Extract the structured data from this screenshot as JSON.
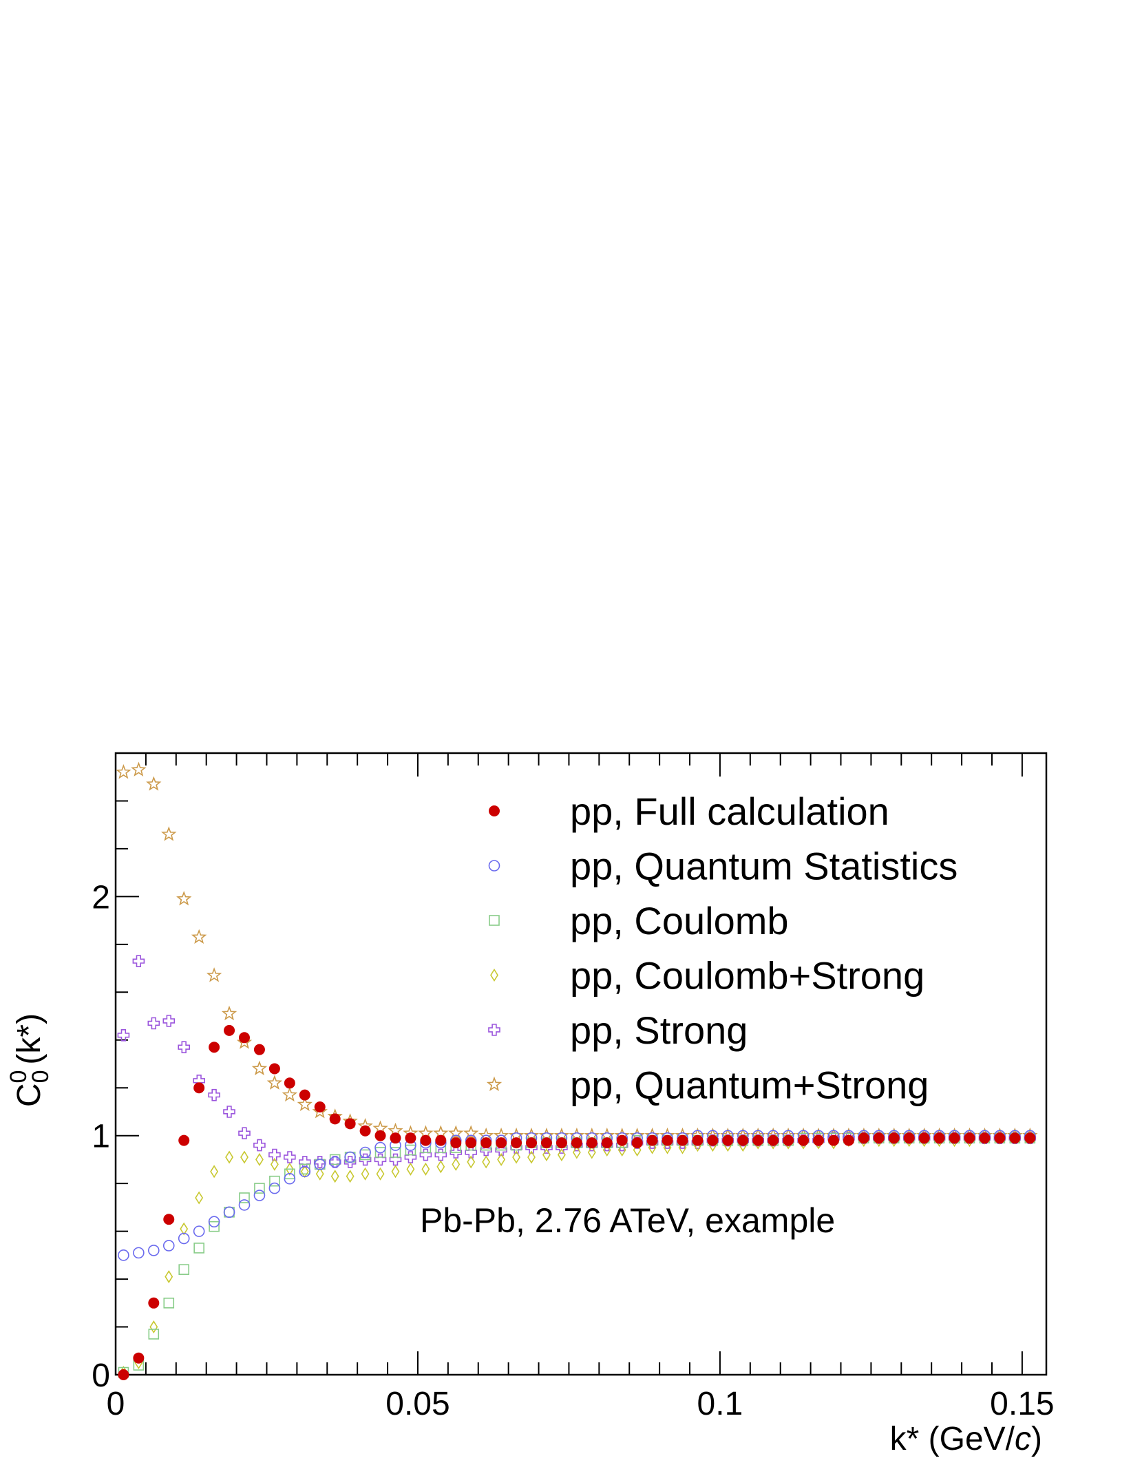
{
  "chart_data": {
    "type": "scatter",
    "xlabel": "k* (GeV/c)",
    "ylabel": "C₀⁰ (k*)",
    "xlim": [
      0,
      0.154
    ],
    "ylim": [
      0,
      2.6
    ],
    "xticks": [
      0,
      0.05,
      0.1,
      0.15
    ],
    "xtick_labels": [
      "0",
      "0.05",
      "0.1",
      "0.15"
    ],
    "yticks": [
      0,
      1,
      2
    ],
    "ytick_labels": [
      "0",
      "1",
      "2"
    ],
    "grid": false,
    "legend_position": "top-right",
    "annotation": "Pb-Pb, 2.76 ATeV, example",
    "x": [
      0.0013,
      0.0038,
      0.0063,
      0.0088,
      0.0113,
      0.0138,
      0.0163,
      0.0188,
      0.0213,
      0.0238,
      0.0263,
      0.0288,
      0.0313,
      0.0338,
      0.0363,
      0.0388,
      0.0413,
      0.0438,
      0.0463,
      0.0488,
      0.0513,
      0.0538,
      0.0563,
      0.0588,
      0.0613,
      0.0638,
      0.0663,
      0.0688,
      0.0713,
      0.0738,
      0.0763,
      0.0788,
      0.0813,
      0.0838,
      0.0863,
      0.0888,
      0.0913,
      0.0938,
      0.0963,
      0.0988,
      0.1013,
      0.1038,
      0.1063,
      0.1088,
      0.1113,
      0.1138,
      0.1163,
      0.1188,
      0.1213,
      0.1238,
      0.1263,
      0.1288,
      0.1313,
      0.1338,
      0.1363,
      0.1388,
      0.1413,
      0.1438,
      0.1463,
      0.1488,
      0.1513
    ],
    "series": [
      {
        "name": "pp, Full calculation",
        "marker": "filled-circle",
        "color": "#cc0000",
        "values": [
          0.0,
          0.07,
          0.3,
          0.65,
          0.98,
          1.2,
          1.37,
          1.44,
          1.41,
          1.36,
          1.28,
          1.22,
          1.17,
          1.12,
          1.07,
          1.05,
          1.02,
          1.0,
          0.99,
          0.99,
          0.98,
          0.98,
          0.97,
          0.97,
          0.97,
          0.97,
          0.97,
          0.97,
          0.97,
          0.97,
          0.97,
          0.97,
          0.97,
          0.98,
          0.97,
          0.98,
          0.98,
          0.98,
          0.98,
          0.98,
          0.98,
          0.98,
          0.98,
          0.98,
          0.98,
          0.98,
          0.98,
          0.98,
          0.98,
          0.99,
          0.99,
          0.99,
          0.99,
          0.99,
          0.99,
          0.99,
          0.99,
          0.99,
          0.99,
          0.99,
          0.99
        ]
      },
      {
        "name": "pp, Quantum Statistics",
        "marker": "open-circle",
        "color": "#6a6aee",
        "values": [
          0.5,
          0.51,
          0.52,
          0.54,
          0.57,
          0.6,
          0.64,
          0.68,
          0.71,
          0.75,
          0.78,
          0.82,
          0.85,
          0.88,
          0.89,
          0.91,
          0.93,
          0.95,
          0.96,
          0.96,
          0.97,
          0.97,
          0.98,
          0.98,
          0.98,
          0.98,
          0.99,
          0.99,
          0.99,
          0.99,
          0.99,
          0.99,
          0.99,
          0.99,
          0.99,
          0.99,
          0.99,
          0.99,
          1.0,
          1.0,
          1.0,
          1.0,
          1.0,
          1.0,
          1.0,
          1.0,
          1.0,
          1.0,
          1.0,
          1.0,
          1.0,
          1.0,
          1.0,
          1.0,
          1.0,
          1.0,
          1.0,
          1.0,
          1.0,
          1.0,
          1.0
        ]
      },
      {
        "name": "pp, Coulomb",
        "marker": "open-square",
        "color": "#88cc88",
        "values": [
          0.01,
          0.04,
          0.17,
          0.3,
          0.44,
          0.53,
          0.62,
          0.68,
          0.74,
          0.78,
          0.81,
          0.84,
          0.86,
          0.88,
          0.9,
          0.91,
          0.92,
          0.93,
          0.93,
          0.94,
          0.95,
          0.95,
          0.95,
          0.96,
          0.96,
          0.96,
          0.96,
          0.97,
          0.97,
          0.97,
          0.97,
          0.97,
          0.97,
          0.97,
          0.98,
          0.98,
          0.98,
          0.98,
          0.98,
          0.98,
          0.98,
          0.98,
          0.98,
          0.98,
          0.98,
          0.99,
          0.99,
          0.99,
          0.99,
          0.99,
          0.99,
          0.99,
          0.99,
          0.99,
          0.99,
          0.99,
          0.99,
          0.99,
          0.99,
          0.99,
          0.99
        ]
      },
      {
        "name": "pp, Coulomb+Strong",
        "marker": "open-diamond",
        "color": "#c8c830",
        "values": [
          0.01,
          0.05,
          0.2,
          0.41,
          0.61,
          0.74,
          0.85,
          0.91,
          0.91,
          0.9,
          0.88,
          0.86,
          0.85,
          0.84,
          0.83,
          0.83,
          0.84,
          0.84,
          0.85,
          0.86,
          0.86,
          0.87,
          0.88,
          0.89,
          0.89,
          0.9,
          0.91,
          0.91,
          0.92,
          0.92,
          0.93,
          0.93,
          0.94,
          0.94,
          0.94,
          0.95,
          0.95,
          0.95,
          0.96,
          0.96,
          0.96,
          0.96,
          0.97,
          0.97,
          0.97,
          0.97,
          0.97,
          0.97,
          0.98,
          0.98,
          0.98,
          0.98,
          0.98,
          0.98,
          0.98,
          0.98,
          0.98,
          0.99,
          0.99,
          0.99,
          0.99
        ]
      },
      {
        "name": "pp, Strong",
        "marker": "open-cross",
        "color": "#9b55dd",
        "values": [
          1.42,
          1.73,
          1.47,
          1.48,
          1.37,
          1.23,
          1.17,
          1.1,
          1.01,
          0.96,
          0.92,
          0.91,
          0.89,
          0.89,
          0.89,
          0.89,
          0.9,
          0.9,
          0.9,
          0.91,
          0.92,
          0.92,
          0.93,
          0.93,
          0.94,
          0.94,
          0.95,
          0.95,
          0.95,
          0.95,
          0.96,
          0.96,
          0.96,
          0.96,
          0.97,
          0.97,
          0.97,
          0.97,
          0.97,
          0.98,
          0.98,
          0.98,
          0.98,
          0.98,
          0.98,
          0.98,
          0.98,
          0.99,
          0.99,
          0.99,
          0.99,
          0.99,
          0.99,
          0.99,
          0.99,
          0.99,
          0.99,
          0.99,
          0.99,
          0.99,
          0.99
        ]
      },
      {
        "name": "pp, Quantum+Strong",
        "marker": "open-star",
        "color": "#cc9a4a",
        "values": [
          2.52,
          2.53,
          2.47,
          2.26,
          1.99,
          1.83,
          1.67,
          1.51,
          1.39,
          1.28,
          1.22,
          1.17,
          1.13,
          1.1,
          1.08,
          1.06,
          1.04,
          1.03,
          1.02,
          1.01,
          1.01,
          1.01,
          1.01,
          1.01,
          1.0,
          1.0,
          1.0,
          1.0,
          1.0,
          1.0,
          1.0,
          1.0,
          1.0,
          1.0,
          1.0,
          1.0,
          1.0,
          1.0,
          1.0,
          1.0,
          1.0,
          1.0,
          1.0,
          1.0,
          1.0,
          1.0,
          1.0,
          1.0,
          1.0,
          1.0,
          1.0,
          1.0,
          1.0,
          1.0,
          1.0,
          1.0,
          1.0,
          1.0,
          1.0,
          1.0,
          1.0
        ]
      }
    ]
  }
}
